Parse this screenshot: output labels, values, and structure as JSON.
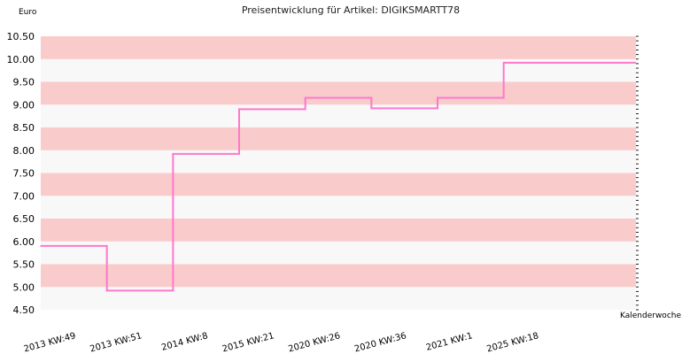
{
  "chart_data": {
    "type": "line",
    "step": true,
    "title": "Preisentwicklung für Artikel: DIGIKSMARTT78",
    "ylabel": "Euro",
    "xlabel": "Kalenderwoche",
    "categories": [
      "2013 KW:49",
      "2013 KW:51",
      "2014 KW:8",
      "2015 KW:21",
      "2020 KW:26",
      "2020 KW:36",
      "2021 KW:1",
      "2025 KW:18"
    ],
    "series": [
      {
        "values": [
          5.9,
          4.92,
          7.92,
          8.9,
          9.15,
          8.92,
          9.15,
          9.92
        ],
        "color": "#ff77cc"
      }
    ],
    "ylim": [
      4.5,
      10.5
    ],
    "yticks": [
      "4.50",
      "5.00",
      "5.50",
      "6.00",
      "6.50",
      "7.00",
      "7.50",
      "8.00",
      "8.50",
      "9.00",
      "9.50",
      "10.00",
      "10.50"
    ],
    "band_colors": [
      "#f8f8f8",
      "#facbcb"
    ],
    "grid": true,
    "legend": "none"
  }
}
